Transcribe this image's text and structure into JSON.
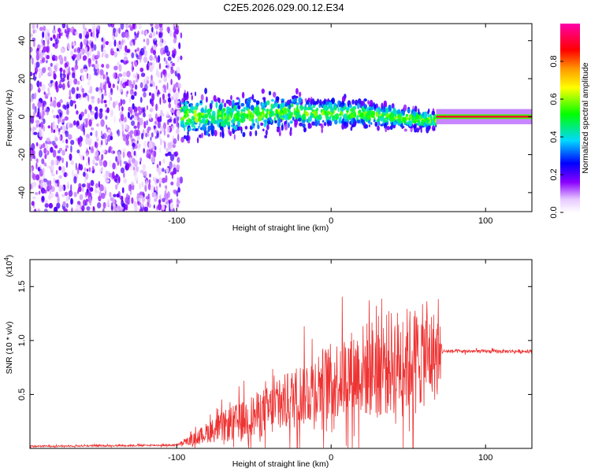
{
  "title": "C2E5.2026.029.00.12.E34",
  "chart_data": [
    {
      "type": "heatmap",
      "title": "C2E5.2026.029.00.12.E34",
      "xlabel": "Height of straight line (km)",
      "ylabel": "Frequency (Hz)",
      "xlim": [
        -195,
        130
      ],
      "ylim": [
        -50,
        49
      ],
      "x_ticks": [
        -100,
        0,
        100
      ],
      "x_tick_labels": [
        "-100",
        "0",
        "100"
      ],
      "y_ticks": [
        -40,
        -20,
        0,
        20,
        40
      ],
      "y_tick_labels": [
        "-40",
        "-20",
        "0",
        "20",
        "40"
      ],
      "colorbar": {
        "label": "Normalized spectral amplitude",
        "range": [
          0,
          1
        ],
        "ticks": [
          0.0,
          0.2,
          0.4,
          0.6,
          0.8
        ],
        "tick_labels": [
          "0.0",
          "0.2",
          "0.4",
          "0.6",
          "0.8"
        ]
      },
      "regions": [
        {
          "name": "noise",
          "x_range": [
            -195,
            -97
          ],
          "freq_range": [
            -50,
            49
          ],
          "amplitude": 0.12
        },
        {
          "name": "signal-band",
          "x_range": [
            -97,
            68
          ],
          "freq_center": 0,
          "freq_halfwidth": 9,
          "amplitude": 0.3
        },
        {
          "name": "tone",
          "x_range": [
            68,
            130
          ],
          "freq_center": 0,
          "amplitude": 0.9
        }
      ]
    },
    {
      "type": "line",
      "xlabel": "Height of straight line (km)",
      "ylabel": "SNR (10 * v/v)",
      "ylabel_multiplier": "(x10",
      "ylabel_multiplier_exp": "4",
      "ylabel_multiplier_close": ")",
      "xlim": [
        -195,
        130
      ],
      "ylim": [
        0,
        1.75
      ],
      "x_ticks": [
        -100,
        0,
        100
      ],
      "x_tick_labels": [
        "-100",
        "0",
        "100"
      ],
      "y_ticks": [
        0.5,
        1.0,
        1.5
      ],
      "y_tick_labels": [
        "0.5",
        "1.0",
        "1.5"
      ],
      "series": [
        {
          "name": "SNR",
          "color": "#ee3333",
          "envelope": {
            "x": [
              -195,
              -100,
              -90,
              -80,
              -70,
              -60,
              -50,
              -40,
              -30,
              -20,
              -10,
              0,
              10,
              20,
              30,
              40,
              50,
              60,
              70,
              72,
              130
            ],
            "mean": [
              0.02,
              0.03,
              0.08,
              0.15,
              0.2,
              0.25,
              0.3,
              0.35,
              0.42,
              0.5,
              0.58,
              0.62,
              0.68,
              0.72,
              0.76,
              0.8,
              0.82,
              0.86,
              0.86,
              0.9,
              0.9
            ],
            "amplitude": [
              0.01,
              0.01,
              0.06,
              0.12,
              0.18,
              0.22,
              0.26,
              0.3,
              0.34,
              0.38,
              0.42,
              0.45,
              0.5,
              0.55,
              0.6,
              0.62,
              0.62,
              0.6,
              0.5,
              0.02,
              0.02
            ]
          }
        }
      ]
    }
  ]
}
